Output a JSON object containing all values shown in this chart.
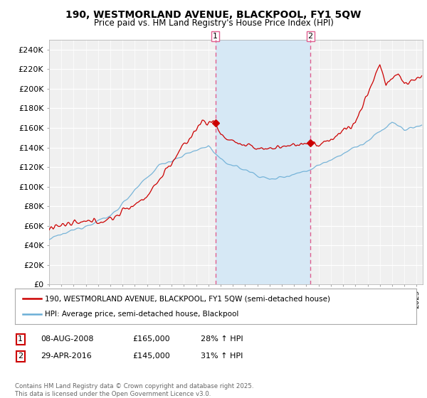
{
  "title_line1": "190, WESTMORLAND AVENUE, BLACKPOOL, FY1 5QW",
  "title_line2": "Price paid vs. HM Land Registry's House Price Index (HPI)",
  "ylabel_ticks": [
    "£0",
    "£20K",
    "£40K",
    "£60K",
    "£80K",
    "£100K",
    "£120K",
    "£140K",
    "£160K",
    "£180K",
    "£200K",
    "£220K",
    "£240K"
  ],
  "ytick_values": [
    0,
    20000,
    40000,
    60000,
    80000,
    100000,
    120000,
    140000,
    160000,
    180000,
    200000,
    220000,
    240000
  ],
  "ylim": [
    0,
    250000
  ],
  "xlim": [
    1995,
    2025.5
  ],
  "marker1_date": 2008.58,
  "marker1_label": "1",
  "marker1_price": 165000,
  "marker2_date": 2016.33,
  "marker2_label": "2",
  "marker2_price": 145000,
  "legend_line1": "190, WESTMORLAND AVENUE, BLACKPOOL, FY1 5QW (semi-detached house)",
  "legend_line2": "HPI: Average price, semi-detached house, Blackpool",
  "table_row1": [
    "1",
    "08-AUG-2008",
    "£165,000",
    "28% ↑ HPI"
  ],
  "table_row2": [
    "2",
    "29-APR-2016",
    "£145,000",
    "31% ↑ HPI"
  ],
  "footer": "Contains HM Land Registry data © Crown copyright and database right 2025.\nThis data is licensed under the Open Government Licence v3.0.",
  "hpi_color": "#6baed6",
  "price_color": "#cc0000",
  "bg_chart": "#f0f0f0",
  "grid_color": "#ffffff",
  "vline_color": "#e06090",
  "shade_color": "#d6e8f5",
  "fig_bg": "#ffffff"
}
